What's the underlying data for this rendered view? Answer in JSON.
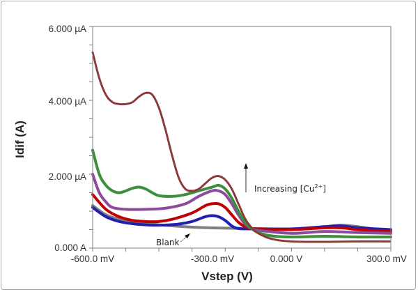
{
  "chart_data": {
    "type": "line",
    "xlabel": "Vstep (V)",
    "ylabel": "Idif (A)",
    "xlim": [
      -600,
      300
    ],
    "ylim": [
      0,
      6
    ],
    "x_unit": "mV",
    "y_unit": "µA",
    "x_ticks": [
      -600,
      -300,
      0,
      300
    ],
    "x_tick_labels": [
      "-600.0 mV",
      "-300.0 mV",
      "0.000 V",
      "300.0 mV"
    ],
    "y_ticks": [
      0,
      2,
      4,
      6
    ],
    "y_tick_labels": [
      "0.000 A",
      "2.000 µA",
      "4.000 µA",
      "6.000 µA"
    ],
    "grid": false,
    "legend": "none",
    "annotations": {
      "increasing": {
        "text_main": "Increasing [Cu",
        "sup": "2+",
        "text_end": "]"
      },
      "blank": "Blank"
    },
    "series": [
      {
        "color": "#7f7f7f",
        "points": [
          [
            -600,
            1.15
          ],
          [
            -560,
            0.9
          ],
          [
            -520,
            0.78
          ],
          [
            -480,
            0.7
          ],
          [
            -440,
            0.66
          ],
          [
            -400,
            0.63
          ],
          [
            -340,
            0.59
          ],
          [
            -280,
            0.56
          ],
          [
            -200,
            0.54
          ],
          [
            -120,
            0.53
          ],
          [
            0,
            0.52
          ],
          [
            100,
            0.58
          ],
          [
            150,
            0.62
          ],
          [
            200,
            0.58
          ],
          [
            250,
            0.52
          ],
          [
            300,
            0.5
          ]
        ]
      },
      {
        "color": "#1f1fb4",
        "points": [
          [
            -600,
            1.1
          ],
          [
            -560,
            0.85
          ],
          [
            -520,
            0.72
          ],
          [
            -480,
            0.66
          ],
          [
            -440,
            0.63
          ],
          [
            -400,
            0.62
          ],
          [
            -340,
            0.65
          ],
          [
            -300,
            0.72
          ],
          [
            -260,
            0.85
          ],
          [
            -240,
            0.88
          ],
          [
            -220,
            0.85
          ],
          [
            -200,
            0.75
          ],
          [
            -180,
            0.6
          ],
          [
            -160,
            0.53
          ],
          [
            -120,
            0.52
          ],
          [
            0,
            0.52
          ],
          [
            100,
            0.58
          ],
          [
            150,
            0.6
          ],
          [
            200,
            0.55
          ],
          [
            300,
            0.5
          ]
        ]
      },
      {
        "color": "#c00000",
        "points": [
          [
            -600,
            1.45
          ],
          [
            -560,
            1.05
          ],
          [
            -520,
            0.85
          ],
          [
            -480,
            0.75
          ],
          [
            -440,
            0.72
          ],
          [
            -400,
            0.72
          ],
          [
            -360,
            0.78
          ],
          [
            -300,
            0.95
          ],
          [
            -260,
            1.15
          ],
          [
            -240,
            1.2
          ],
          [
            -220,
            1.2
          ],
          [
            -200,
            1.1
          ],
          [
            -180,
            0.9
          ],
          [
            -160,
            0.7
          ],
          [
            -140,
            0.58
          ],
          [
            -120,
            0.53
          ],
          [
            -100,
            0.52
          ],
          [
            0,
            0.5
          ],
          [
            100,
            0.55
          ],
          [
            150,
            0.55
          ],
          [
            200,
            0.5
          ],
          [
            300,
            0.45
          ]
        ]
      },
      {
        "color": "#8e4a9e",
        "points": [
          [
            -600,
            2.0
          ],
          [
            -580,
            1.5
          ],
          [
            -560,
            1.25
          ],
          [
            -540,
            1.1
          ],
          [
            -500,
            1.05
          ],
          [
            -440,
            1.05
          ],
          [
            -380,
            1.08
          ],
          [
            -320,
            1.2
          ],
          [
            -280,
            1.4
          ],
          [
            -240,
            1.55
          ],
          [
            -220,
            1.55
          ],
          [
            -200,
            1.45
          ],
          [
            -180,
            1.2
          ],
          [
            -160,
            0.9
          ],
          [
            -140,
            0.65
          ],
          [
            -120,
            0.53
          ],
          [
            -100,
            0.48
          ],
          [
            0,
            0.4
          ],
          [
            100,
            0.45
          ],
          [
            200,
            0.42
          ],
          [
            300,
            0.4
          ]
        ]
      },
      {
        "color": "#3d8f3d",
        "points": [
          [
            -600,
            2.65
          ],
          [
            -580,
            2.0
          ],
          [
            -560,
            1.7
          ],
          [
            -540,
            1.55
          ],
          [
            -520,
            1.5
          ],
          [
            -500,
            1.55
          ],
          [
            -480,
            1.62
          ],
          [
            -460,
            1.65
          ],
          [
            -440,
            1.6
          ],
          [
            -420,
            1.5
          ],
          [
            -400,
            1.42
          ],
          [
            -360,
            1.4
          ],
          [
            -320,
            1.45
          ],
          [
            -280,
            1.55
          ],
          [
            -240,
            1.65
          ],
          [
            -220,
            1.7
          ],
          [
            -200,
            1.6
          ],
          [
            -180,
            1.35
          ],
          [
            -160,
            1.0
          ],
          [
            -140,
            0.7
          ],
          [
            -120,
            0.53
          ],
          [
            -100,
            0.42
          ],
          [
            -60,
            0.33
          ],
          [
            0,
            0.3
          ],
          [
            100,
            0.32
          ],
          [
            200,
            0.3
          ],
          [
            300,
            0.3
          ]
        ]
      },
      {
        "color": "#8b3a3a",
        "points": [
          [
            -600,
            5.3
          ],
          [
            -580,
            4.6
          ],
          [
            -560,
            4.15
          ],
          [
            -540,
            3.95
          ],
          [
            -520,
            3.9
          ],
          [
            -500,
            3.9
          ],
          [
            -480,
            3.95
          ],
          [
            -460,
            4.1
          ],
          [
            -440,
            4.2
          ],
          [
            -420,
            4.15
          ],
          [
            -400,
            3.8
          ],
          [
            -380,
            3.2
          ],
          [
            -360,
            2.5
          ],
          [
            -340,
            1.9
          ],
          [
            -320,
            1.6
          ],
          [
            -300,
            1.55
          ],
          [
            -280,
            1.6
          ],
          [
            -260,
            1.75
          ],
          [
            -240,
            1.9
          ],
          [
            -220,
            1.95
          ],
          [
            -200,
            1.85
          ],
          [
            -180,
            1.6
          ],
          [
            -160,
            1.2
          ],
          [
            -140,
            0.8
          ],
          [
            -120,
            0.55
          ],
          [
            -100,
            0.4
          ],
          [
            -60,
            0.25
          ],
          [
            0,
            0.18
          ],
          [
            100,
            0.17
          ],
          [
            200,
            0.18
          ],
          [
            300,
            0.18
          ]
        ]
      }
    ]
  }
}
